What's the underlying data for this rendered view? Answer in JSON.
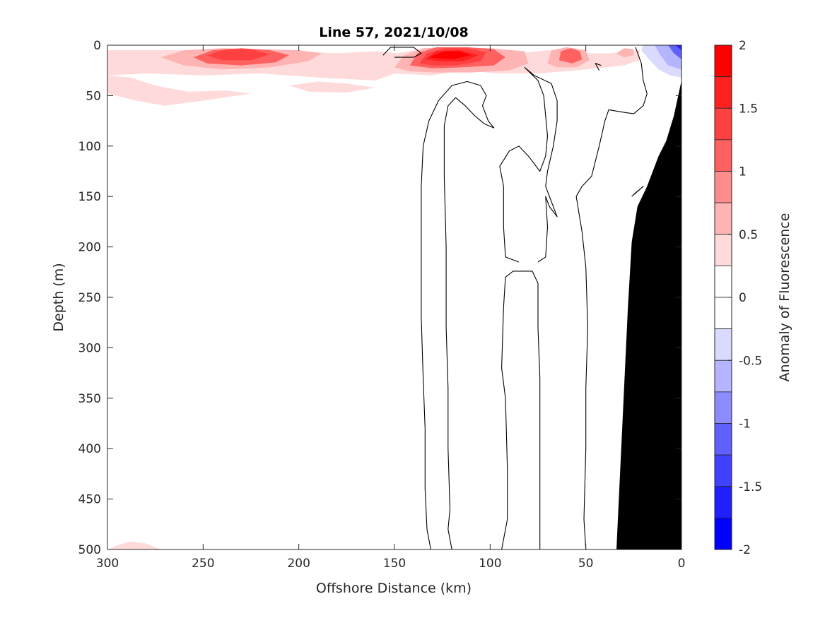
{
  "chart_data": {
    "type": "heatmap",
    "title": "Line 57, 2021/10/08",
    "xlabel": "Offshore Distance (km)",
    "ylabel": "Depth (m)",
    "xlim": [
      0,
      300
    ],
    "x_reversed": true,
    "ylim": [
      0,
      500
    ],
    "y_reversed": true,
    "x_ticks": [
      300,
      250,
      200,
      150,
      100,
      50,
      0
    ],
    "y_ticks": [
      0,
      50,
      100,
      150,
      200,
      250,
      300,
      350,
      400,
      450,
      500
    ],
    "colorbar": {
      "label": "Anomaly of Fluorescence",
      "range": [
        -2,
        2
      ],
      "ticks": [
        2,
        1.5,
        1,
        0.5,
        0,
        -0.5,
        -1,
        -1.5,
        -2
      ],
      "levels": [
        {
          "from": 1.75,
          "to": 2,
          "color": "#ff0000"
        },
        {
          "from": 1.5,
          "to": 1.75,
          "color": "#ff2020"
        },
        {
          "from": 1.25,
          "to": 1.5,
          "color": "#ff4040"
        },
        {
          "from": 1,
          "to": 1.25,
          "color": "#ff6060"
        },
        {
          "from": 0.75,
          "to": 1,
          "color": "#ff8c8c"
        },
        {
          "from": 0.5,
          "to": 0.75,
          "color": "#ffb4b4"
        },
        {
          "from": 0.25,
          "to": 0.5,
          "color": "#ffdada"
        },
        {
          "from": 0,
          "to": 0.25,
          "color": "#ffffff"
        },
        {
          "from": -0.25,
          "to": 0,
          "color": "#ffffff"
        },
        {
          "from": -0.5,
          "to": -0.25,
          "color": "#dadaff"
        },
        {
          "from": -0.75,
          "to": -0.5,
          "color": "#b4b4ff"
        },
        {
          "from": -1,
          "to": -0.75,
          "color": "#8c8cff"
        },
        {
          "from": -1.25,
          "to": -1,
          "color": "#6060ff"
        },
        {
          "from": -1.5,
          "to": -1.25,
          "color": "#4040ff"
        },
        {
          "from": -1.75,
          "to": -1.5,
          "color": "#2020ff"
        },
        {
          "from": -2,
          "to": -1.75,
          "color": "#0000ff"
        }
      ]
    },
    "bathymetry_color": "#000000",
    "bathymetry": [
      [
        34,
        500
      ],
      [
        32,
        420
      ],
      [
        30,
        340
      ],
      [
        28,
        260
      ],
      [
        26,
        195
      ],
      [
        23,
        160
      ],
      [
        18,
        140
      ],
      [
        12,
        110
      ],
      [
        8,
        95
      ],
      [
        4,
        70
      ],
      [
        0,
        35
      ],
      [
        0,
        500
      ]
    ],
    "filled_regions": [
      {
        "value": 0.3,
        "color": "#ffdada",
        "points": [
          [
            300,
            5
          ],
          [
            260,
            5
          ],
          [
            215,
            5
          ],
          [
            180,
            8
          ],
          [
            160,
            6
          ],
          [
            148,
            8
          ],
          [
            140,
            5
          ],
          [
            130,
            5
          ],
          [
            110,
            5
          ],
          [
            85,
            8
          ],
          [
            70,
            5
          ],
          [
            55,
            8
          ],
          [
            38,
            8
          ],
          [
            22,
            5
          ],
          [
            22,
            15
          ],
          [
            30,
            20
          ],
          [
            55,
            25
          ],
          [
            75,
            28
          ],
          [
            95,
            28
          ],
          [
            115,
            25
          ],
          [
            130,
            30
          ],
          [
            150,
            28
          ],
          [
            160,
            35
          ],
          [
            190,
            32
          ],
          [
            220,
            28
          ],
          [
            250,
            30
          ],
          [
            280,
            28
          ],
          [
            300,
            30
          ]
        ]
      },
      {
        "value": 0.3,
        "color": "#ffdada",
        "points": [
          [
            300,
            30
          ],
          [
            288,
            32
          ],
          [
            275,
            40
          ],
          [
            258,
            46
          ],
          [
            238,
            45
          ],
          [
            225,
            48
          ],
          [
            250,
            55
          ],
          [
            270,
            60
          ],
          [
            285,
            55
          ],
          [
            300,
            48
          ]
        ]
      },
      {
        "value": 0.3,
        "color": "#ffdada",
        "points": [
          [
            205,
            40
          ],
          [
            190,
            36
          ],
          [
            175,
            38
          ],
          [
            160,
            42
          ],
          [
            175,
            47
          ],
          [
            195,
            46
          ]
        ]
      },
      {
        "value": 0.3,
        "color": "#ffdada",
        "points": [
          [
            300,
            500
          ],
          [
            295,
            496
          ],
          [
            288,
            492
          ],
          [
            280,
            494
          ],
          [
            272,
            500
          ]
        ]
      },
      {
        "value": 0.6,
        "color": "#ffb4b4",
        "points": [
          [
            272,
            12
          ],
          [
            260,
            5
          ],
          [
            240,
            3
          ],
          [
            220,
            4
          ],
          [
            200,
            5
          ],
          [
            188,
            8
          ],
          [
            195,
            16
          ],
          [
            215,
            22
          ],
          [
            240,
            24
          ],
          [
            260,
            20
          ]
        ]
      },
      {
        "value": 0.6,
        "color": "#ffb4b4",
        "points": [
          [
            150,
            22
          ],
          [
            145,
            10
          ],
          [
            135,
            3
          ],
          [
            120,
            2
          ],
          [
            100,
            3
          ],
          [
            82,
            6
          ],
          [
            80,
            18
          ],
          [
            90,
            25
          ],
          [
            110,
            27
          ],
          [
            128,
            27
          ],
          [
            142,
            26
          ]
        ]
      },
      {
        "value": 0.6,
        "color": "#ffb4b4",
        "points": [
          [
            70,
            18
          ],
          [
            68,
            5
          ],
          [
            60,
            2
          ],
          [
            50,
            5
          ],
          [
            48,
            15
          ],
          [
            55,
            22
          ],
          [
            65,
            22
          ]
        ]
      },
      {
        "value": 0.6,
        "color": "#ffb4b4",
        "points": [
          [
            34,
            8
          ],
          [
            30,
            3
          ],
          [
            25,
            4
          ],
          [
            25,
            10
          ],
          [
            30,
            12
          ]
        ]
      },
      {
        "value": 1.0,
        "color": "#ff6060",
        "points": [
          [
            255,
            12
          ],
          [
            245,
            5
          ],
          [
            230,
            3
          ],
          [
            215,
            5
          ],
          [
            205,
            10
          ],
          [
            212,
            17
          ],
          [
            230,
            20
          ],
          [
            248,
            18
          ]
        ]
      },
      {
        "value": 1.0,
        "color": "#ff6060",
        "points": [
          [
            142,
            20
          ],
          [
            138,
            8
          ],
          [
            128,
            2
          ],
          [
            112,
            2
          ],
          [
            98,
            4
          ],
          [
            92,
            12
          ],
          [
            98,
            20
          ],
          [
            115,
            22
          ],
          [
            130,
            23
          ]
        ]
      },
      {
        "value": 1.0,
        "color": "#ff6060",
        "points": [
          [
            64,
            15
          ],
          [
            63,
            6
          ],
          [
            58,
            3
          ],
          [
            53,
            6
          ],
          [
            52,
            14
          ],
          [
            57,
            18
          ]
        ]
      },
      {
        "value": 1.25,
        "color": "#ff4040",
        "points": [
          [
            248,
            10
          ],
          [
            238,
            4
          ],
          [
            225,
            4
          ],
          [
            215,
            9
          ],
          [
            225,
            15
          ],
          [
            240,
            15
          ]
        ]
      },
      {
        "value": 1.25,
        "color": "#ff4040",
        "points": [
          [
            137,
            18
          ],
          [
            133,
            8
          ],
          [
            124,
            3
          ],
          [
            112,
            3
          ],
          [
            102,
            7
          ],
          [
            105,
            16
          ],
          [
            118,
            20
          ],
          [
            130,
            20
          ]
        ]
      },
      {
        "value": 1.5,
        "color": "#ff2020",
        "points": [
          [
            134,
            14
          ],
          [
            128,
            6
          ],
          [
            116,
            5
          ],
          [
            106,
            10
          ],
          [
            114,
            16
          ],
          [
            126,
            16
          ]
        ]
      },
      {
        "value": 1.75,
        "color": "#ff0000",
        "points": [
          [
            132,
            12
          ],
          [
            124,
            6
          ],
          [
            116,
            6
          ],
          [
            110,
            10
          ],
          [
            120,
            14
          ]
        ]
      },
      {
        "value": -0.3,
        "color": "#dadaff",
        "points": [
          [
            20,
            0
          ],
          [
            0,
            0
          ],
          [
            0,
            32
          ],
          [
            6,
            30
          ],
          [
            12,
            24
          ],
          [
            17,
            14
          ],
          [
            21,
            5
          ]
        ]
      },
      {
        "value": -0.6,
        "color": "#b4b4ff",
        "points": [
          [
            14,
            0
          ],
          [
            0,
            0
          ],
          [
            0,
            24
          ],
          [
            7,
            20
          ],
          [
            11,
            10
          ]
        ]
      },
      {
        "value": -1.0,
        "color": "#6060ff",
        "points": [
          [
            7,
            0
          ],
          [
            0,
            0
          ],
          [
            0,
            14
          ],
          [
            4,
            8
          ]
        ]
      },
      {
        "value": -1.5,
        "color": "#2020ff",
        "points": [
          [
            3,
            0
          ],
          [
            0,
            0
          ],
          [
            0,
            5
          ]
        ]
      }
    ],
    "contours_zero": [
      [
        [
          131,
          500
        ],
        [
          133,
          480
        ],
        [
          134,
          440
        ],
        [
          134,
          380
        ],
        [
          135,
          330
        ],
        [
          136,
          270
        ],
        [
          136,
          200
        ],
        [
          136,
          140
        ],
        [
          135,
          100
        ],
        [
          132,
          75
        ],
        [
          127,
          55
        ],
        [
          120,
          40
        ],
        [
          112,
          36
        ],
        [
          105,
          40
        ],
        [
          102,
          50
        ],
        [
          104,
          60
        ],
        [
          101,
          75
        ],
        [
          98,
          82
        ],
        [
          103,
          78
        ],
        [
          108,
          70
        ],
        [
          113,
          60
        ],
        [
          118,
          52
        ],
        [
          122,
          60
        ],
        [
          124,
          80
        ],
        [
          124,
          130
        ],
        [
          123,
          200
        ],
        [
          123,
          280
        ],
        [
          122,
          340
        ],
        [
          122,
          400
        ],
        [
          121,
          460
        ],
        [
          122,
          480
        ],
        [
          120,
          500
        ]
      ],
      [
        [
          94,
          500
        ],
        [
          91,
          470
        ],
        [
          91,
          420
        ],
        [
          92,
          350
        ],
        [
          94,
          320
        ],
        [
          93,
          260
        ],
        [
          92,
          230
        ],
        [
          88,
          224
        ],
        [
          78,
          224
        ],
        [
          75,
          236
        ],
        [
          75,
          280
        ],
        [
          74,
          330
        ],
        [
          74,
          400
        ],
        [
          74,
          460
        ],
        [
          74,
          500
        ]
      ],
      [
        [
          85,
          215
        ],
        [
          92,
          210
        ],
        [
          93,
          180
        ],
        [
          93,
          140
        ],
        [
          95,
          120
        ],
        [
          90,
          105
        ],
        [
          85,
          100
        ],
        [
          80,
          110
        ],
        [
          74,
          125
        ],
        [
          71,
          110
        ],
        [
          70,
          90
        ],
        [
          71,
          70
        ],
        [
          72,
          50
        ],
        [
          75,
          35
        ],
        [
          82,
          22
        ],
        [
          77,
          30
        ],
        [
          68,
          38
        ],
        [
          65,
          55
        ],
        [
          65,
          75
        ],
        [
          67,
          100
        ],
        [
          70,
          125
        ],
        [
          71,
          140
        ],
        [
          68,
          155
        ],
        [
          65,
          170
        ],
        [
          69,
          160
        ],
        [
          71,
          150
        ],
        [
          70,
          180
        ],
        [
          71,
          210
        ],
        [
          75,
          215
        ]
      ],
      [
        [
          50,
          500
        ],
        [
          51,
          470
        ],
        [
          50,
          400
        ],
        [
          50,
          340
        ],
        [
          49,
          280
        ],
        [
          50,
          220
        ],
        [
          52,
          185
        ],
        [
          55,
          150
        ],
        [
          52,
          140
        ],
        [
          47,
          130
        ],
        [
          43,
          100
        ],
        [
          40,
          75
        ],
        [
          38,
          64
        ],
        [
          32,
          66
        ],
        [
          25,
          68
        ],
        [
          20,
          60
        ],
        [
          18,
          48
        ],
        [
          20,
          35
        ],
        [
          21,
          18
        ],
        [
          24,
          2
        ]
      ],
      [
        [
          43,
          25
        ],
        [
          45,
          18
        ],
        [
          42,
          20
        ]
      ],
      [
        [
          26,
          150
        ],
        [
          20,
          140
        ],
        [
          25,
          148
        ]
      ],
      [
        [
          156,
          10
        ],
        [
          152,
          2
        ],
        [
          140,
          2
        ],
        [
          136,
          8
        ],
        [
          140,
          12
        ],
        [
          150,
          12
        ]
      ]
    ]
  }
}
